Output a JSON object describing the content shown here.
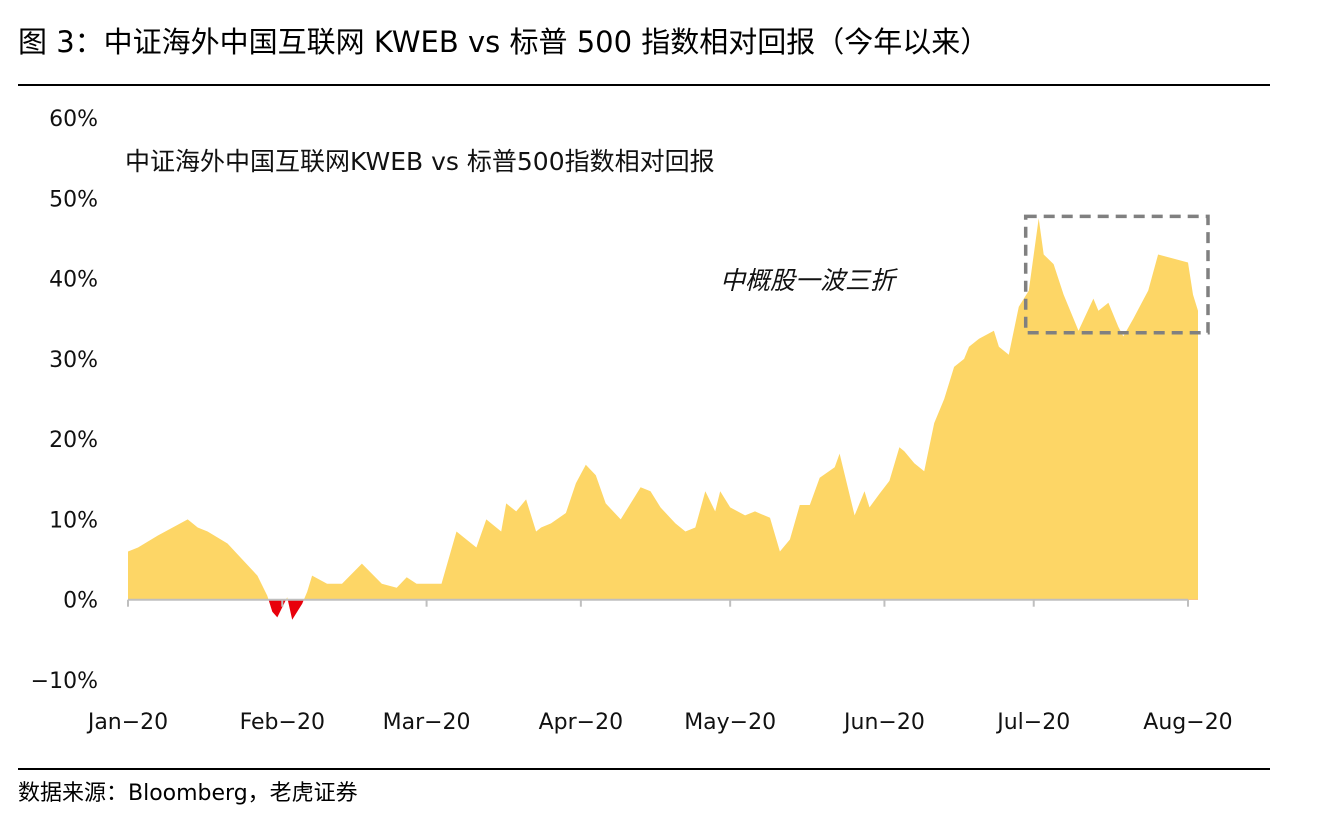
{
  "figure": {
    "title": "图 3：中证海外中国互联网 KWEB vs  标普 500 指数相对回报（今年以来）",
    "source": "数据来源：Bloomberg，老虎证券"
  },
  "colors": {
    "positive": "#FDD666",
    "negative": "#E8000B",
    "box": "#808080",
    "axis": "#BFBFBF"
  },
  "chart_data": {
    "type": "area",
    "title": "中证海外中国互联网KWEB vs 标普500指数相对回报",
    "xlabel": "",
    "ylabel": "",
    "ylim": [
      -10,
      60
    ],
    "y_ticks": [
      60,
      50,
      40,
      30,
      20,
      10,
      0,
      -10
    ],
    "y_tick_labels": [
      "60%",
      "50%",
      "40%",
      "30%",
      "20%",
      "10%",
      "0%",
      "−10%"
    ],
    "x_ticks": [
      {
        "date": "2020-01-01",
        "label": "Jan−20"
      },
      {
        "date": "2020-02-01",
        "label": "Feb−20"
      },
      {
        "date": "2020-03-01",
        "label": "Mar−20"
      },
      {
        "date": "2020-04-01",
        "label": "Apr−20"
      },
      {
        "date": "2020-05-01",
        "label": "May−20"
      },
      {
        "date": "2020-06-01",
        "label": "Jun−20"
      },
      {
        "date": "2020-07-01",
        "label": "Jul−20"
      },
      {
        "date": "2020-08-01",
        "label": "Aug−20"
      }
    ],
    "grid": false,
    "legend": "none",
    "series": [
      {
        "x": [
          "2020-01-01",
          "2020-01-03",
          "2020-01-07",
          "2020-01-13",
          "2020-01-15",
          "2020-01-17",
          "2020-01-21",
          "2020-01-24",
          "2020-01-27",
          "2020-01-29",
          "2020-01-30",
          "2020-01-31",
          "2020-02-02",
          "2020-02-03",
          "2020-02-05",
          "2020-02-06",
          "2020-02-07",
          "2020-02-10",
          "2020-02-13",
          "2020-02-17",
          "2020-02-21",
          "2020-02-24",
          "2020-02-26",
          "2020-02-28",
          "2020-03-04",
          "2020-03-07",
          "2020-03-09",
          "2020-03-10",
          "2020-03-11",
          "2020-03-13",
          "2020-03-16",
          "2020-03-17",
          "2020-03-19",
          "2020-03-21",
          "2020-03-23",
          "2020-03-24",
          "2020-03-26",
          "2020-03-29",
          "2020-03-31",
          "2020-04-02",
          "2020-04-04",
          "2020-04-06",
          "2020-04-09",
          "2020-04-13",
          "2020-04-15",
          "2020-04-17",
          "2020-04-20",
          "2020-04-22",
          "2020-04-24",
          "2020-04-26",
          "2020-04-28",
          "2020-04-29",
          "2020-05-01",
          "2020-05-04",
          "2020-05-06",
          "2020-05-09",
          "2020-05-11",
          "2020-05-13",
          "2020-05-15",
          "2020-05-17",
          "2020-05-19",
          "2020-05-22",
          "2020-05-23",
          "2020-05-26",
          "2020-05-28",
          "2020-05-29",
          "2020-05-31",
          "2020-06-02",
          "2020-06-04",
          "2020-06-05",
          "2020-06-07",
          "2020-06-09",
          "2020-06-11",
          "2020-06-13",
          "2020-06-15",
          "2020-06-17",
          "2020-06-18",
          "2020-06-20",
          "2020-06-23",
          "2020-06-24",
          "2020-06-26",
          "2020-06-28",
          "2020-06-30",
          "2020-07-02",
          "2020-07-03",
          "2020-07-05",
          "2020-07-07",
          "2020-07-08",
          "2020-07-10",
          "2020-07-13",
          "2020-07-14",
          "2020-07-16",
          "2020-07-18",
          "2020-07-19",
          "2020-07-21",
          "2020-07-24",
          "2020-07-26",
          "2020-07-29",
          "2020-08-01",
          "2020-08-02",
          "2020-08-03"
        ],
        "values": [
          6,
          6.5,
          8,
          10,
          9,
          8.5,
          7,
          5,
          3,
          0.5,
          -1.5,
          -2.2,
          0.3,
          -2.5,
          -0.5,
          1,
          3,
          2,
          2,
          4.5,
          2,
          1.5,
          2.8,
          2,
          2,
          8.5,
          7.5,
          7,
          6.5,
          10,
          8.5,
          12,
          11,
          12.5,
          8.5,
          9,
          9.5,
          10.8,
          14.5,
          16.8,
          15.5,
          12,
          10,
          14,
          13.5,
          11.5,
          9.5,
          8.5,
          9,
          13.5,
          11,
          13.5,
          11.5,
          10.5,
          11,
          10.2,
          6,
          7.5,
          11.8,
          11.8,
          15.2,
          16.5,
          18.2,
          10.5,
          13.5,
          11.5,
          13.2,
          14.8,
          19,
          18.5,
          17,
          16,
          22,
          25,
          29,
          30,
          31.5,
          32.5,
          33.5,
          31.5,
          30.5,
          36.5,
          38.5,
          47.5,
          43,
          41.8,
          38,
          36.5,
          33.5,
          37.5,
          36,
          37,
          34,
          32.8,
          35,
          38.5,
          43,
          42.5,
          42,
          38,
          36
        ]
      }
    ],
    "annotations": [
      {
        "text": "中概股一波三折",
        "x_range": [
          "2020-07-01",
          "2020-08-01"
        ],
        "y_range": [
          33.5,
          47.5
        ],
        "style": "dashed box"
      }
    ]
  }
}
